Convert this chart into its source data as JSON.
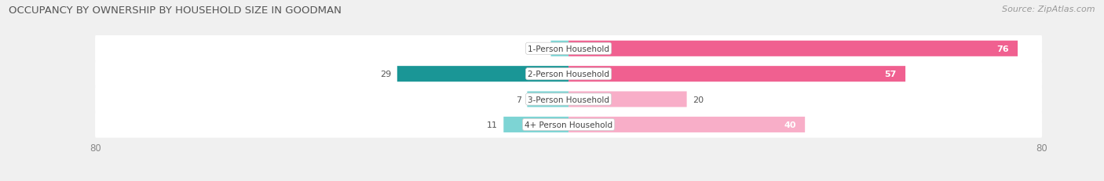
{
  "title": "OCCUPANCY BY OWNERSHIP BY HOUSEHOLD SIZE IN GOODMAN",
  "source": "Source: ZipAtlas.com",
  "categories": [
    "1-Person Household",
    "2-Person Household",
    "3-Person Household",
    "4+ Person Household"
  ],
  "owner_values": [
    3,
    29,
    7,
    11
  ],
  "renter_values": [
    76,
    57,
    20,
    40
  ],
  "owner_color_light": "#7dd4d4",
  "owner_color_dark": "#1a9696",
  "renter_color_dark": "#f06090",
  "renter_color_light": "#f8aec8",
  "axis_max": 80,
  "bg_color": "#f0f0f0",
  "bar_bg_color": "#e4e4e4",
  "title_fontsize": 9.5,
  "source_fontsize": 8,
  "label_fontsize": 8,
  "tick_fontsize": 8.5
}
